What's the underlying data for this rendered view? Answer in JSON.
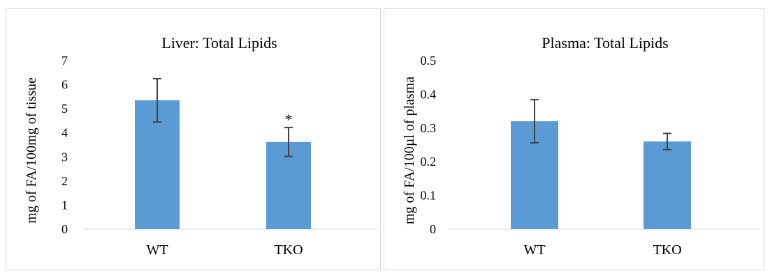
{
  "chart_data": [
    {
      "type": "bar",
      "title": "Liver: Total Lipids",
      "ylabel": "mg of FA/100mg of tissue",
      "xlabel": "",
      "categories": [
        "WT",
        "TKO"
      ],
      "values": [
        5.35,
        3.62
      ],
      "error": [
        0.9,
        0.6
      ],
      "annotations": [
        "",
        "*"
      ],
      "ylim": [
        0,
        7
      ],
      "yticks": [
        "0",
        "1",
        "2",
        "3",
        "4",
        "5",
        "6",
        "7"
      ],
      "grid": false,
      "color": "#5b9bd5"
    },
    {
      "type": "bar",
      "title": "Plasma: Total Lipids",
      "ylabel": "mg of FA/100µl of plasma",
      "xlabel": "",
      "categories": [
        "WT",
        "TKO"
      ],
      "values": [
        0.32,
        0.26
      ],
      "error": [
        0.064,
        0.024
      ],
      "annotations": [
        "",
        ""
      ],
      "ylim": [
        0,
        0.5
      ],
      "yticks": [
        "0",
        "0.1",
        "0.2",
        "0.3",
        "0.4",
        "0.5"
      ],
      "grid": false,
      "color": "#5b9bd5"
    }
  ]
}
